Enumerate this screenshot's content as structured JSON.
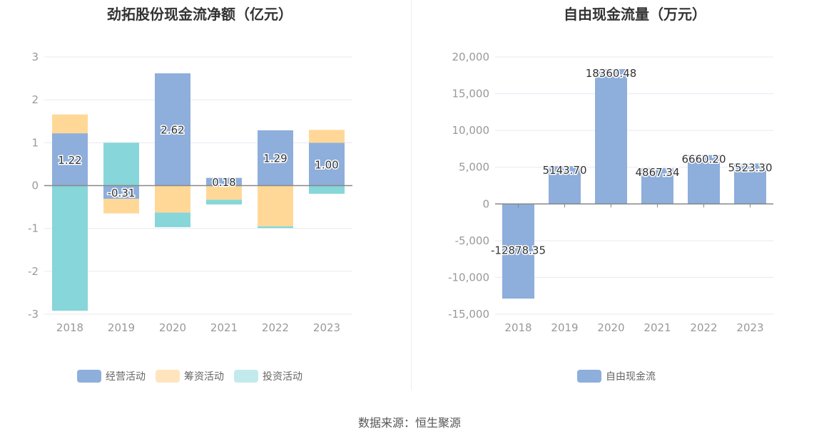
{
  "chart_data": [
    {
      "type": "bar",
      "stacked": true,
      "title": "劲拓股份现金流净额（亿元）",
      "categories": [
        "2018",
        "2019",
        "2020",
        "2021",
        "2022",
        "2023"
      ],
      "ylim": [
        -3,
        3
      ],
      "yticks": [
        3,
        2,
        1,
        0,
        -1,
        -2,
        -3
      ],
      "grid": true,
      "legend": "bottom",
      "series": [
        {
          "name": "经营活动",
          "color": "#8eaedb",
          "values": [
            1.22,
            -0.31,
            2.62,
            0.18,
            1.29,
            1.0
          ],
          "labels": [
            "1.22",
            "-0.31",
            "2.62",
            "0.18",
            "1.29",
            "1.00"
          ]
        },
        {
          "name": "筹资活动",
          "color": "#ffd898",
          "values": [
            0.44,
            -0.34,
            -0.63,
            -0.33,
            -0.95,
            0.3
          ]
        },
        {
          "name": "投资活动",
          "color": "#87d6d9",
          "values": [
            -2.92,
            1.0,
            -0.34,
            -0.11,
            -0.04,
            -0.19
          ]
        }
      ]
    },
    {
      "type": "bar",
      "title": "自由现金流量（万元）",
      "categories": [
        "2018",
        "2019",
        "2020",
        "2021",
        "2022",
        "2023"
      ],
      "ylim": [
        -15000,
        20000
      ],
      "yticks": [
        "20,000",
        "15,000",
        "10,000",
        "5,000",
        "0",
        "-5,000",
        "-10,000",
        "-15,000"
      ],
      "grid": true,
      "legend": "bottom",
      "series": [
        {
          "name": "自由现金流",
          "color": "#8eaedb",
          "values": [
            -12878.35,
            5143.7,
            18360.48,
            4867.34,
            6660.2,
            5523.3
          ],
          "labels": [
            "-12878.35",
            "5143.70",
            "18360.48",
            "4867.34",
            "6660.20",
            "5523.30"
          ]
        }
      ]
    }
  ],
  "source": "数据来源：恒生聚源"
}
